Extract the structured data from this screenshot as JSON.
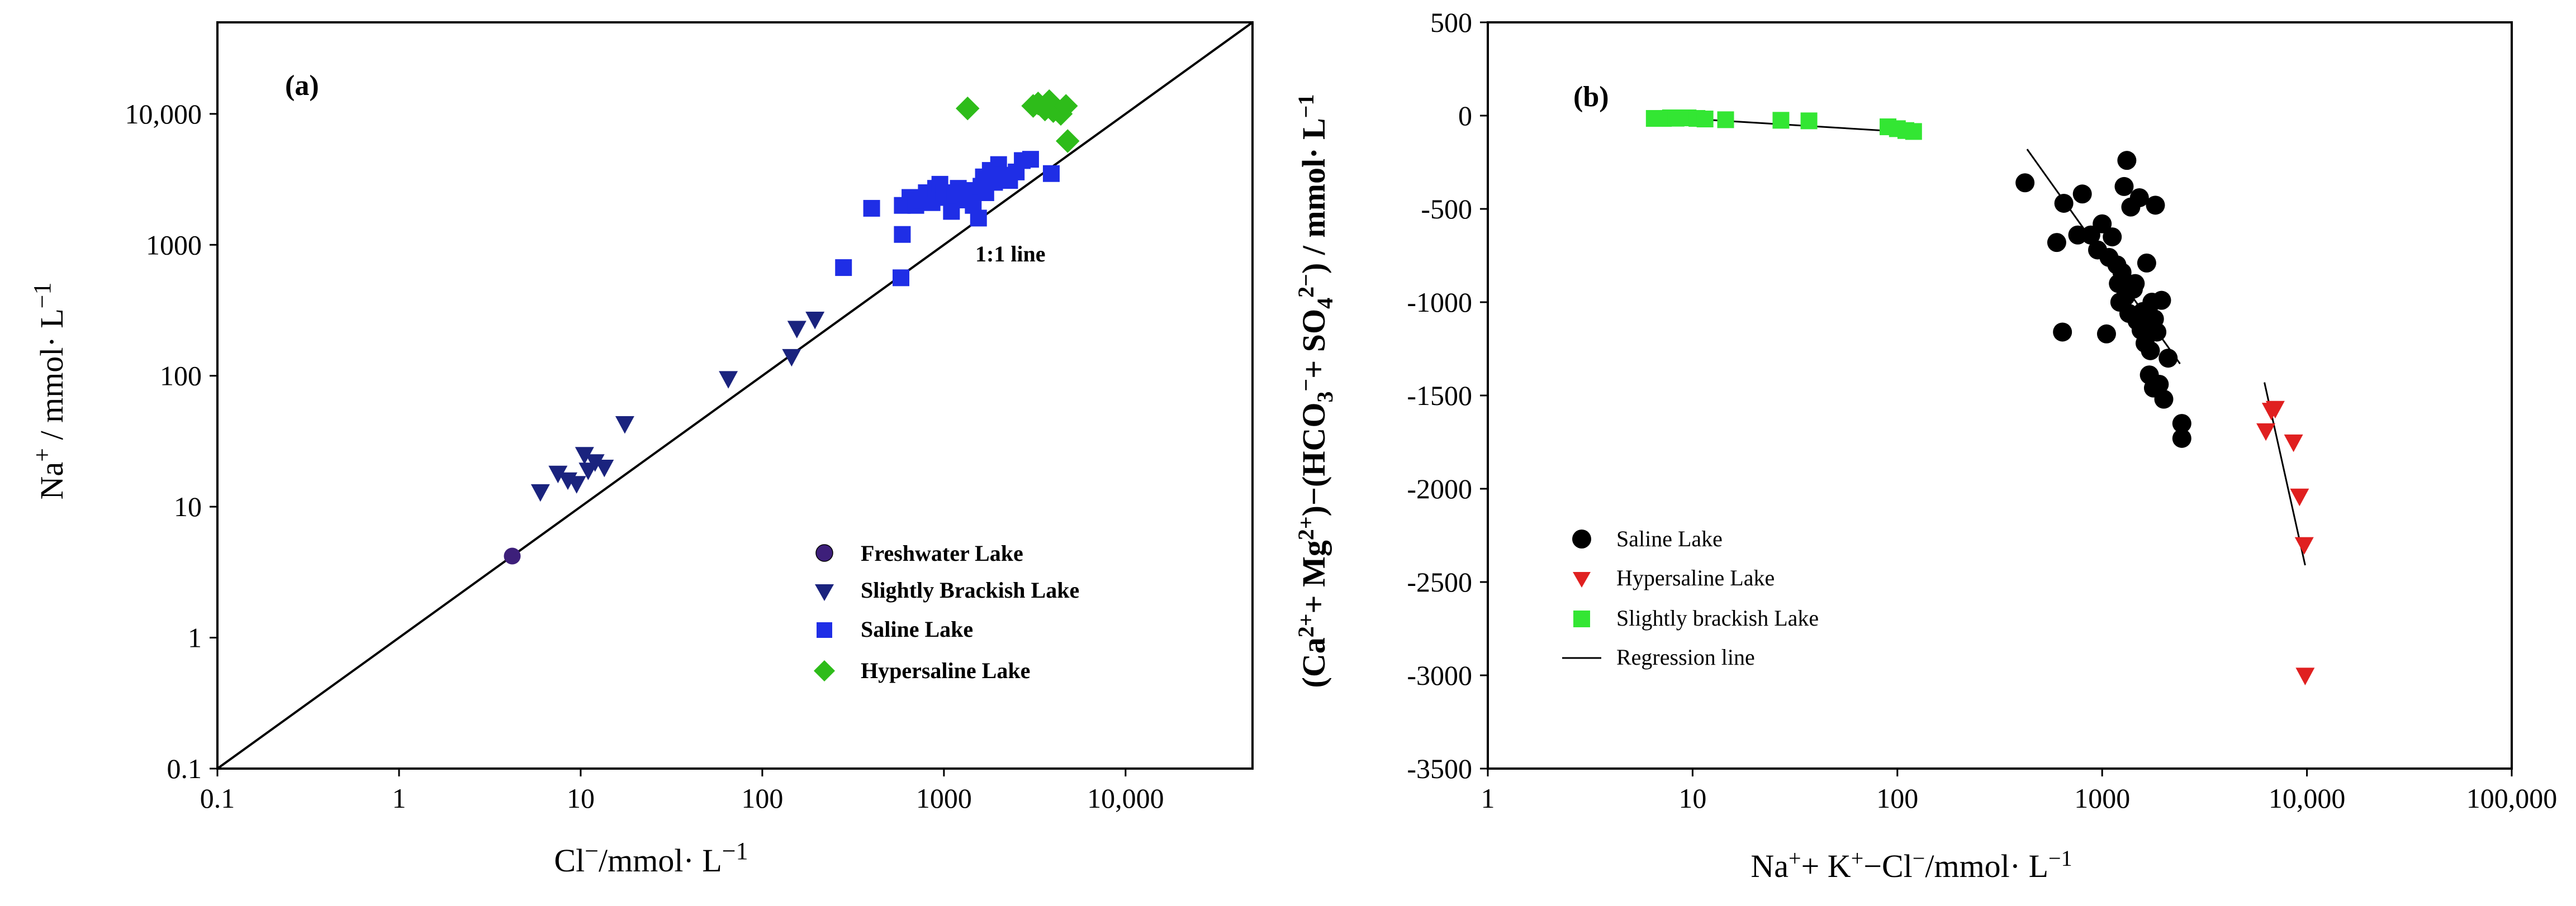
{
  "chart_data": [
    {
      "type": "scatter",
      "panel_label": "(a)",
      "xlabel_parts": [
        "Cl",
        "−",
        "/mmol· L",
        "−1"
      ],
      "ylabel_parts": [
        "Na",
        "+",
        " / mmol· L",
        "−1"
      ],
      "xscale": "log",
      "yscale": "log",
      "xlim": [
        0.1,
        50000
      ],
      "ylim": [
        0.1,
        50000
      ],
      "xticks": [
        0.1,
        1,
        10,
        100,
        1000,
        10000
      ],
      "xtick_labels": [
        "0.1",
        "1",
        "10",
        "100",
        "1000",
        "10,000"
      ],
      "yticks": [
        0.1,
        1,
        10,
        100,
        1000,
        10000
      ],
      "ytick_labels": [
        "0.1",
        "1",
        "10",
        "100",
        "1000",
        "10,000"
      ],
      "reference_line": {
        "label": "1:1 line",
        "from": [
          0.1,
          0.1
        ],
        "to": [
          50000,
          50000
        ]
      },
      "legend_position": "bottom-right",
      "series": [
        {
          "name": "Freshwater Lake",
          "marker": "circle",
          "color": "#3d1f7a",
          "points": [
            [
              4.2,
              4.2
            ]
          ]
        },
        {
          "name": "Slightly Brackish Lake",
          "marker": "triangle-down",
          "color": "#1a237e",
          "points": [
            [
              6,
              13
            ],
            [
              7.5,
              18
            ],
            [
              8.5,
              16
            ],
            [
              9.5,
              15
            ],
            [
              10.5,
              25
            ],
            [
              11,
              19
            ],
            [
              12,
              22
            ],
            [
              13.5,
              20
            ],
            [
              17.5,
              43
            ],
            [
              65,
              95
            ],
            [
              145,
              140
            ],
            [
              155,
              230
            ],
            [
              195,
              270
            ]
          ]
        },
        {
          "name": "Saline Lake",
          "marker": "square",
          "color": "#1f2ee6",
          "points": [
            [
              280,
              670
            ],
            [
              400,
              1900
            ],
            [
              580,
              560
            ],
            [
              590,
              1200
            ],
            [
              590,
              2000
            ],
            [
              650,
              2300
            ],
            [
              700,
              2000
            ],
            [
              750,
              2200
            ],
            [
              800,
              2500
            ],
            [
              860,
              2100
            ],
            [
              900,
              2700
            ],
            [
              950,
              2900
            ],
            [
              1000,
              2500
            ],
            [
              1050,
              2300
            ],
            [
              1100,
              1800
            ],
            [
              1150,
              2400
            ],
            [
              1200,
              2700
            ],
            [
              1300,
              2200
            ],
            [
              1400,
              2600
            ],
            [
              1450,
              2000
            ],
            [
              1550,
              1600
            ],
            [
              1600,
              2800
            ],
            [
              1650,
              3300
            ],
            [
              1700,
              2500
            ],
            [
              1800,
              3700
            ],
            [
              1900,
              3000
            ],
            [
              2000,
              4100
            ],
            [
              2100,
              3400
            ],
            [
              2300,
              3100
            ],
            [
              2500,
              3600
            ],
            [
              2700,
              4400
            ],
            [
              3000,
              4500
            ],
            [
              3900,
              3500
            ]
          ]
        },
        {
          "name": "Hypersaline Lake",
          "marker": "diamond",
          "color": "#2ebc1a",
          "points": [
            [
              1350,
              11000
            ],
            [
              3100,
              11500
            ],
            [
              3300,
              12000
            ],
            [
              3600,
              10800
            ],
            [
              3800,
              12500
            ],
            [
              4000,
              10500
            ],
            [
              4400,
              10000
            ],
            [
              4700,
              11500
            ],
            [
              4800,
              6200
            ]
          ]
        }
      ]
    },
    {
      "type": "scatter",
      "panel_label": "(b)",
      "xlabel_parts": [
        "Na",
        "+",
        "+ K",
        "+",
        "−Cl",
        "−",
        "/mmol· L",
        "−1"
      ],
      "ylabel_parts": [
        "(Ca",
        "2+",
        "+ Mg",
        "2+",
        ")−(HCO",
        "3",
        "−",
        "+ SO",
        "4",
        "2−",
        ") / mmol· L",
        "−1"
      ],
      "xscale": "log",
      "yscale": "linear",
      "xlim": [
        1,
        100000
      ],
      "ylim": [
        -3500,
        500
      ],
      "xticks": [
        1,
        10,
        100,
        1000,
        10000,
        100000
      ],
      "xtick_labels": [
        "1",
        "10",
        "100",
        "1000",
        "10,000",
        "100,000"
      ],
      "yticks": [
        500,
        0,
        -500,
        -1000,
        -1500,
        -2000,
        -2500,
        -3000,
        -3500
      ],
      "ytick_labels": [
        "500",
        "0",
        "-500",
        "-1000",
        "-1500",
        "-2000",
        "-2500",
        "-3000",
        "-3500"
      ],
      "legend_position": "bottom-left",
      "legend_items": [
        "Saline Lake",
        "Hypersaline Lake",
        "Slightly brackish Lake",
        "Regression line"
      ],
      "series": [
        {
          "name": "Saline Lake",
          "marker": "circle",
          "color": "#000000",
          "points": [
            [
              420,
              -360
            ],
            [
              600,
              -680
            ],
            [
              640,
              -1160
            ],
            [
              650,
              -470
            ],
            [
              760,
              -640
            ],
            [
              800,
              -420
            ],
            [
              880,
              -640
            ],
            [
              950,
              -720
            ],
            [
              1000,
              -580
            ],
            [
              1050,
              -1170
            ],
            [
              1080,
              -760
            ],
            [
              1120,
              -650
            ],
            [
              1180,
              -800
            ],
            [
              1200,
              -900
            ],
            [
              1220,
              -1000
            ],
            [
              1250,
              -840
            ],
            [
              1280,
              -380
            ],
            [
              1300,
              -970
            ],
            [
              1320,
              -240
            ],
            [
              1350,
              -1060
            ],
            [
              1380,
              -490
            ],
            [
              1420,
              -930
            ],
            [
              1450,
              -900
            ],
            [
              1480,
              -1100
            ],
            [
              1520,
              -440
            ],
            [
              1550,
              -1150
            ],
            [
              1580,
              -1050
            ],
            [
              1620,
              -1220
            ],
            [
              1650,
              -790
            ],
            [
              1700,
              -1390
            ],
            [
              1720,
              -1260
            ],
            [
              1750,
              -1000
            ],
            [
              1780,
              -1460
            ],
            [
              1800,
              -1090
            ],
            [
              1820,
              -480
            ],
            [
              1850,
              -1160
            ],
            [
              1900,
              -1440
            ],
            [
              1950,
              -990
            ],
            [
              2000,
              -1520
            ],
            [
              2100,
              -1300
            ],
            [
              2450,
              -1650
            ],
            [
              2450,
              -1730
            ]
          ]
        },
        {
          "name": "Hypersaline Lake",
          "marker": "triangle-down",
          "color": "#e02020",
          "points": [
            [
              6300,
              -1690
            ],
            [
              6700,
              -1580
            ],
            [
              7000,
              -1570
            ],
            [
              8600,
              -1750
            ],
            [
              9200,
              -2040
            ],
            [
              9700,
              -2300
            ],
            [
              9800,
              -3000
            ]
          ]
        },
        {
          "name": "Slightly brackish Lake",
          "marker": "square",
          "color": "#33e633",
          "points": [
            [
              6.5,
              -15
            ],
            [
              7.2,
              -15
            ],
            [
              7.8,
              -12
            ],
            [
              8.3,
              -14
            ],
            [
              9,
              -12
            ],
            [
              9.5,
              -12
            ],
            [
              10.5,
              -15
            ],
            [
              11.5,
              -18
            ],
            [
              14.5,
              -22
            ],
            [
              27,
              -25
            ],
            [
              37,
              -28
            ],
            [
              90,
              -60
            ],
            [
              100,
              -70
            ],
            [
              110,
              -80
            ],
            [
              120,
              -85
            ]
          ]
        }
      ],
      "regression_lines": [
        {
          "from": [
            6.5,
            -5
          ],
          "to": [
            120,
            -90
          ]
        },
        {
          "from": [
            430,
            -180
          ],
          "to": [
            2400,
            -1330
          ]
        },
        {
          "from": [
            6200,
            -1430
          ],
          "to": [
            9800,
            -2410
          ]
        }
      ]
    }
  ]
}
